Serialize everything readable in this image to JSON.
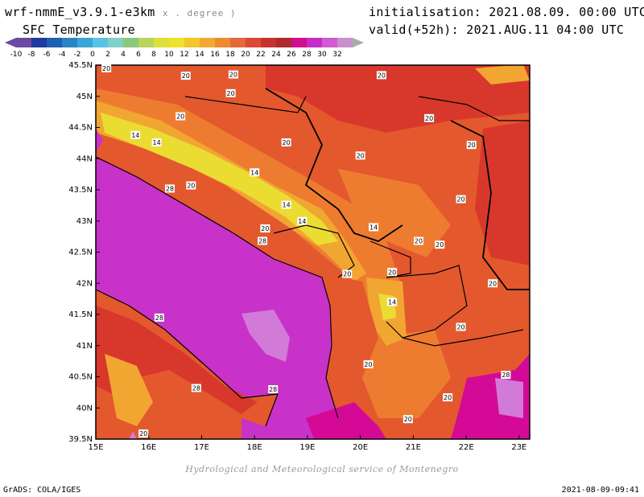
{
  "header": {
    "model": "wrf-nmmE_v3.9.1-e3km",
    "units": "x . degree )",
    "field": "SFC Temperature",
    "init": "initialisation: 2021.08.09. 00:00 UTC",
    "valid": "valid(+52h): 2021.AUG.11 04:00 UTC"
  },
  "colorbar": {
    "labels": [
      "-10",
      "-8",
      "-6",
      "-4",
      "-2",
      "0",
      "2",
      "4",
      "6",
      "8",
      "10",
      "12",
      "14",
      "16",
      "18",
      "20",
      "22",
      "24",
      "26",
      "28",
      "30",
      "32"
    ],
    "colors": [
      "#6a4aa0",
      "#1f3a9e",
      "#1d5fb0",
      "#2a84c6",
      "#3aa6d8",
      "#5ac2e6",
      "#7fd0c8",
      "#8ac87a",
      "#b8d45a",
      "#dde038",
      "#efe22a",
      "#f3c62c",
      "#f2a834",
      "#ee8a32",
      "#e4683a",
      "#da4a34",
      "#c8322e",
      "#b02a2c",
      "#d0108c",
      "#c82cc8",
      "#d25ad2",
      "#c890cc"
    ]
  },
  "map": {
    "lat_labels": [
      "45.5N",
      "45N",
      "44.5N",
      "44N",
      "43.5N",
      "43N",
      "42.5N",
      "42N",
      "41.5N",
      "41N",
      "40.5N",
      "40N",
      "39.5N"
    ],
    "lon_labels": [
      "15E",
      "16E",
      "17E",
      "18E",
      "19E",
      "20E",
      "21E",
      "22E",
      "23E"
    ],
    "colors": {
      "sea": "#c832c8",
      "sea_light": "#d27ad8",
      "sea_deep": "#d40a96",
      "land_hot": "#d8382c",
      "land_warm": "#e4582e",
      "land_mild": "#ee7c30",
      "land_cool": "#f2a632",
      "land_cold": "#ebdc32"
    },
    "contour_labels": [
      {
        "text": "20",
        "lon": 15.2,
        "lat": 45.45
      },
      {
        "text": "20",
        "lon": 16.7,
        "lat": 45.33
      },
      {
        "text": "20",
        "lon": 17.6,
        "lat": 45.35
      },
      {
        "text": "20",
        "lon": 20.4,
        "lat": 45.34
      },
      {
        "text": "20",
        "lon": 17.55,
        "lat": 45.05
      },
      {
        "text": "20",
        "lon": 16.6,
        "lat": 44.68
      },
      {
        "text": "14",
        "lon": 15.75,
        "lat": 44.38
      },
      {
        "text": "14",
        "lon": 16.15,
        "lat": 44.26
      },
      {
        "text": "20",
        "lon": 18.6,
        "lat": 44.26
      },
      {
        "text": "20",
        "lon": 20.0,
        "lat": 44.05
      },
      {
        "text": "20",
        "lon": 21.3,
        "lat": 44.65
      },
      {
        "text": "20",
        "lon": 22.1,
        "lat": 44.22
      },
      {
        "text": "14",
        "lon": 18.0,
        "lat": 43.78
      },
      {
        "text": "20",
        "lon": 16.8,
        "lat": 43.57
      },
      {
        "text": "14",
        "lon": 18.6,
        "lat": 43.26
      },
      {
        "text": "28",
        "lon": 16.4,
        "lat": 43.52
      },
      {
        "text": "20",
        "lon": 21.9,
        "lat": 43.35
      },
      {
        "text": "14",
        "lon": 18.9,
        "lat": 43.0
      },
      {
        "text": "14",
        "lon": 20.25,
        "lat": 42.9
      },
      {
        "text": "20",
        "lon": 18.2,
        "lat": 42.88
      },
      {
        "text": "28",
        "lon": 18.15,
        "lat": 42.68
      },
      {
        "text": "20",
        "lon": 21.1,
        "lat": 42.68
      },
      {
        "text": "20",
        "lon": 21.5,
        "lat": 42.62
      },
      {
        "text": "20",
        "lon": 20.6,
        "lat": 42.18
      },
      {
        "text": "20",
        "lon": 19.75,
        "lat": 42.15
      },
      {
        "text": "20",
        "lon": 22.5,
        "lat": 42.0
      },
      {
        "text": "14",
        "lon": 20.6,
        "lat": 41.7
      },
      {
        "text": "28",
        "lon": 16.2,
        "lat": 41.45
      },
      {
        "text": "20",
        "lon": 21.9,
        "lat": 41.3
      },
      {
        "text": "20",
        "lon": 20.15,
        "lat": 40.7
      },
      {
        "text": "28",
        "lon": 16.9,
        "lat": 40.32
      },
      {
        "text": "28",
        "lon": 18.35,
        "lat": 40.3
      },
      {
        "text": "20",
        "lon": 21.65,
        "lat": 40.17
      },
      {
        "text": "28",
        "lon": 22.75,
        "lat": 40.53
      },
      {
        "text": "20",
        "lon": 20.9,
        "lat": 39.82
      },
      {
        "text": "20",
        "lon": 15.9,
        "lat": 39.59
      }
    ]
  },
  "footer": {
    "credit": "Hydrological and Meteorological service of Montenegro",
    "grads": "GrADS: COLA/IGES",
    "timestamp": "2021-08-09-09:41"
  }
}
